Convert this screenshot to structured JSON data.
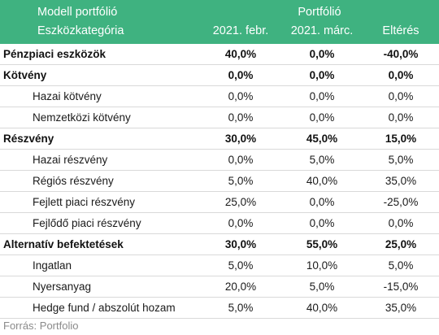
{
  "header": {
    "row1_label": "Modell portfólió",
    "row1_group": "Portfólió",
    "row2_label": "Eszközkategória",
    "col1": "2021. febr.",
    "col2": "2021. márc.",
    "col3": "Eltérés"
  },
  "rows": [
    {
      "label": "Pénzpiaci eszközök",
      "v1": "40,0%",
      "v2": "0,0%",
      "v3": "-40,0%",
      "kind": "cat"
    },
    {
      "label": "Kötvény",
      "v1": "0,0%",
      "v2": "0,0%",
      "v3": "0,0%",
      "kind": "cat"
    },
    {
      "label": "Hazai kötvény",
      "v1": "0,0%",
      "v2": "0,0%",
      "v3": "0,0%",
      "kind": "sub"
    },
    {
      "label": "Nemzetközi kötvény",
      "v1": "0,0%",
      "v2": "0,0%",
      "v3": "0,0%",
      "kind": "sub"
    },
    {
      "label": "Részvény",
      "v1": "30,0%",
      "v2": "45,0%",
      "v3": "15,0%",
      "kind": "cat"
    },
    {
      "label": "Hazai részvény",
      "v1": "0,0%",
      "v2": "5,0%",
      "v3": "5,0%",
      "kind": "sub"
    },
    {
      "label": "Régiós részvény",
      "v1": "5,0%",
      "v2": "40,0%",
      "v3": "35,0%",
      "kind": "sub"
    },
    {
      "label": "Fejlett piaci részvény",
      "v1": "25,0%",
      "v2": "0,0%",
      "v3": "-25,0%",
      "kind": "sub"
    },
    {
      "label": "Fejlődő piaci részvény",
      "v1": "0,0%",
      "v2": "0,0%",
      "v3": "0,0%",
      "kind": "sub"
    },
    {
      "label": "Alternatív befektetések",
      "v1": "30,0%",
      "v2": "55,0%",
      "v3": "25,0%",
      "kind": "cat"
    },
    {
      "label": "Ingatlan",
      "v1": "5,0%",
      "v2": "10,0%",
      "v3": "5,0%",
      "kind": "sub"
    },
    {
      "label": "Nyersanyag",
      "v1": "20,0%",
      "v2": "5,0%",
      "v3": "-15,0%",
      "kind": "sub"
    },
    {
      "label": "Hedge fund / abszolút hozam",
      "v1": "5,0%",
      "v2": "40,0%",
      "v3": "35,0%",
      "kind": "sub"
    }
  ],
  "source": "Forrás: Portfolio",
  "colors": {
    "header_bg": "#3fb280",
    "header_text": "#ffffff",
    "source_text": "#8a8a8a"
  }
}
